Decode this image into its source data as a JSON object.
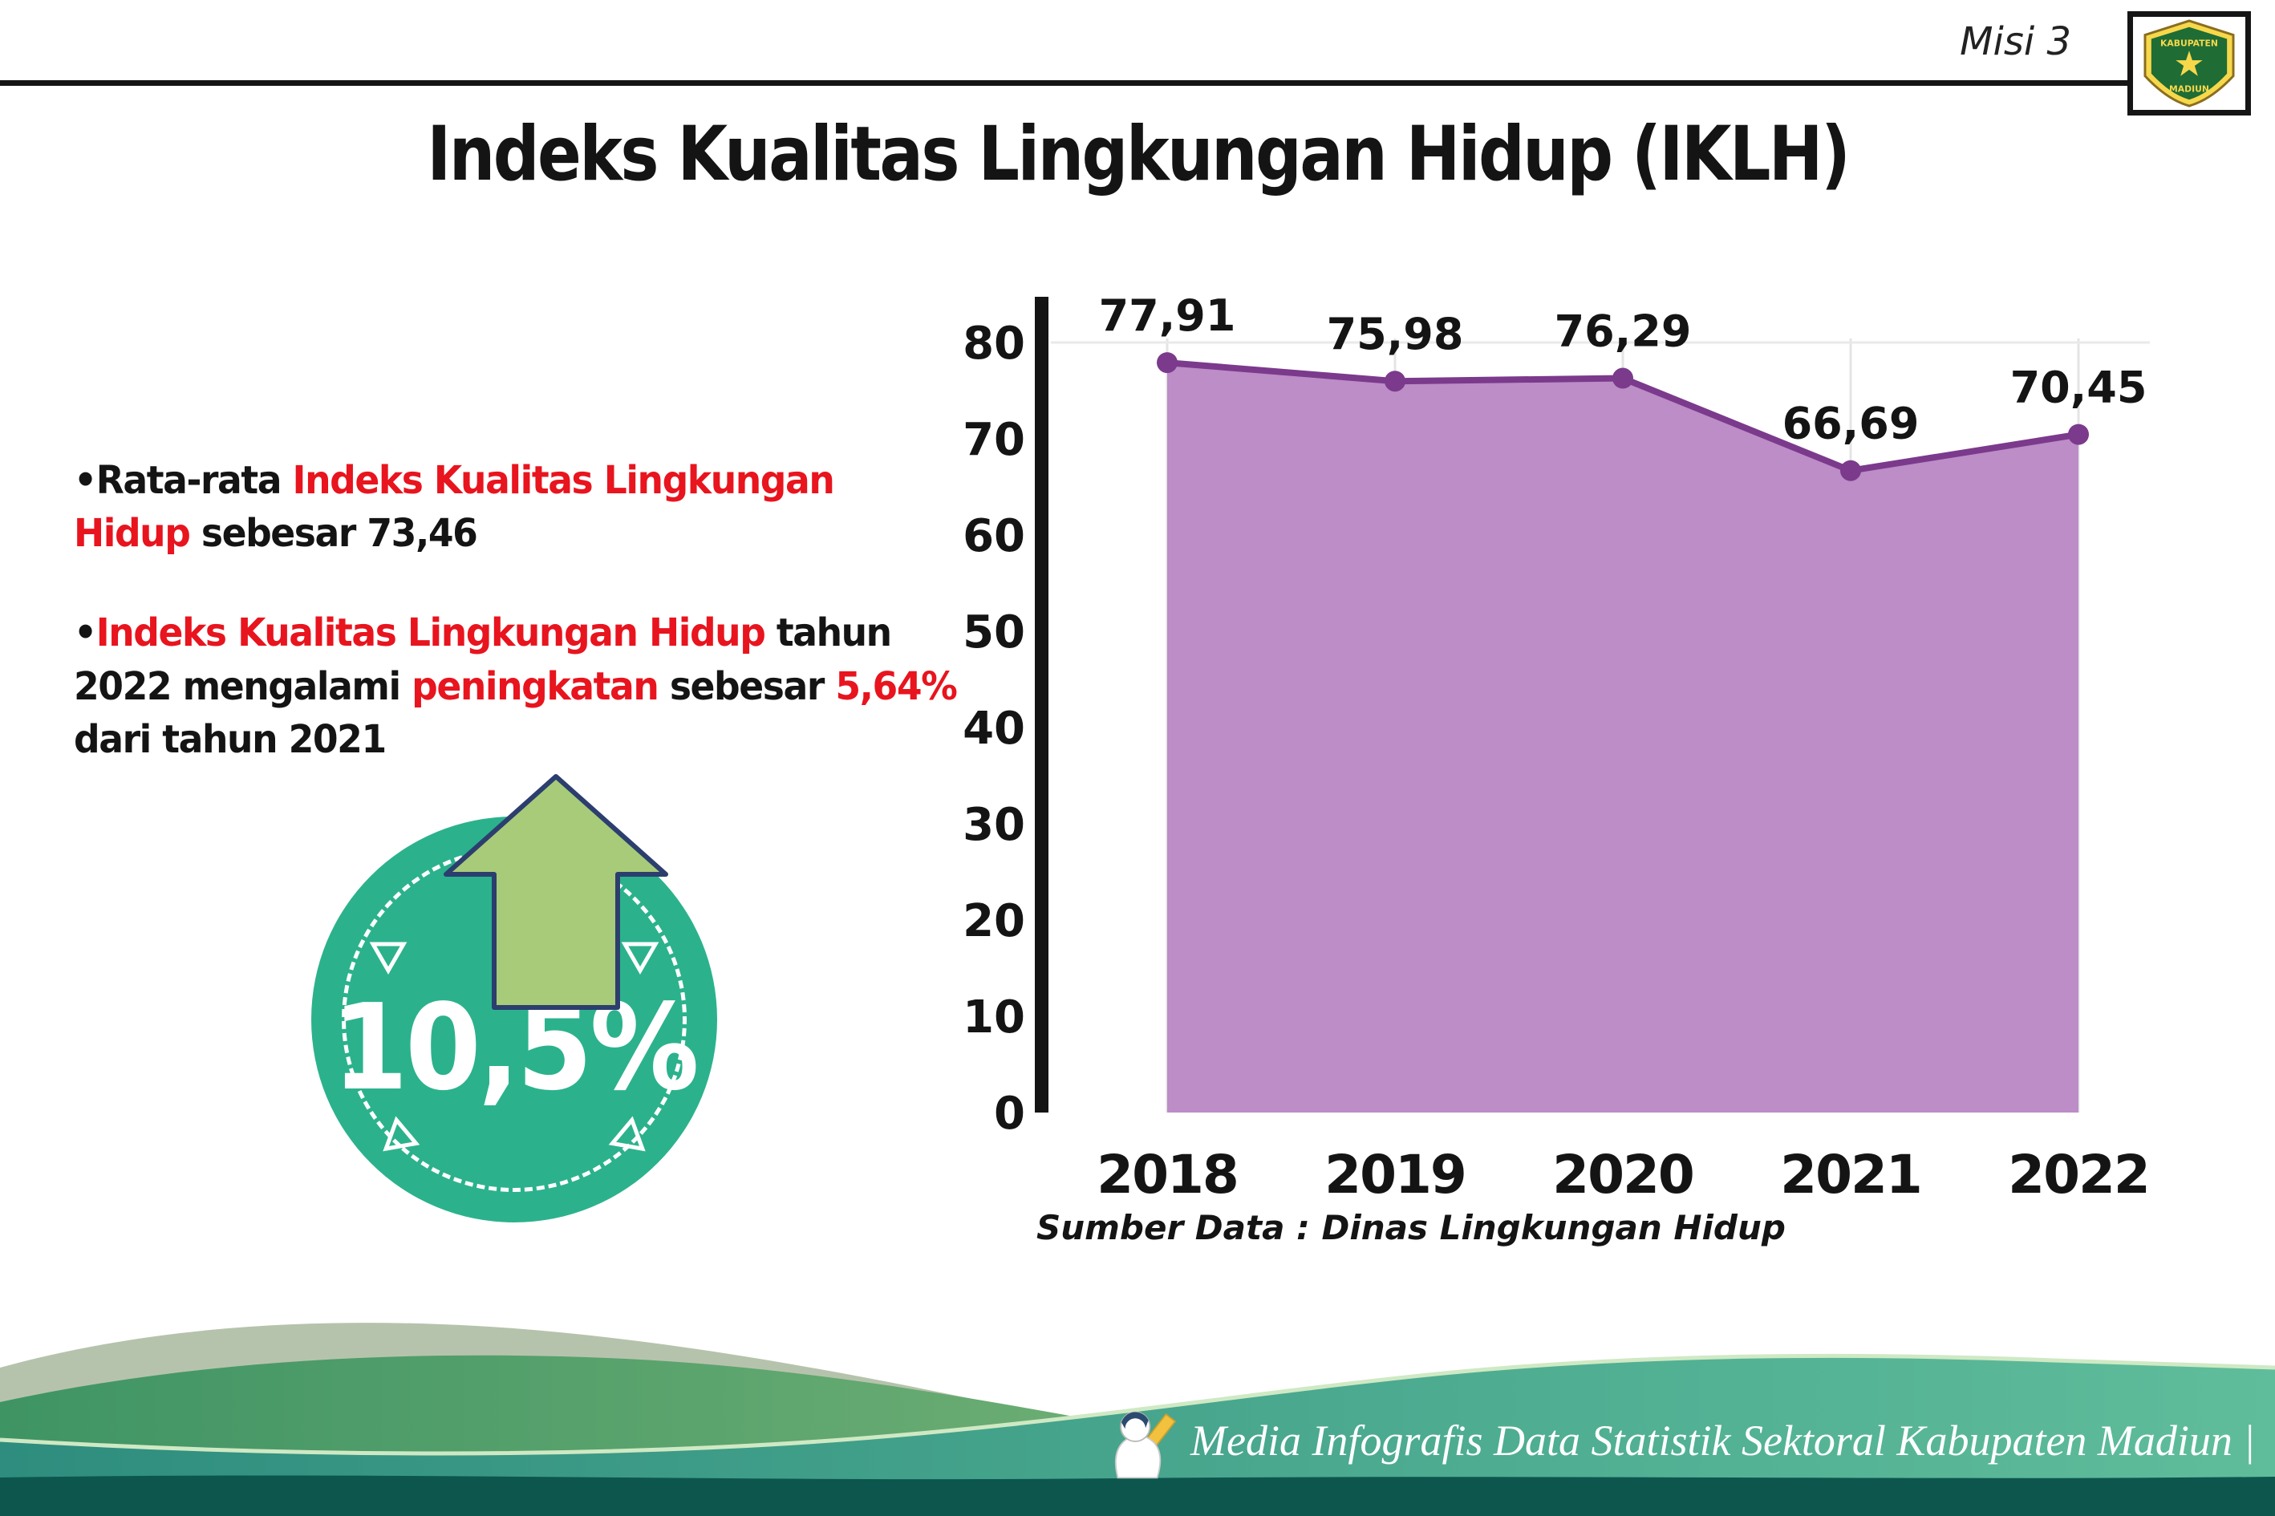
{
  "header": {
    "misi_label": "Misi 3",
    "title": "Indeks Kualitas Lingkungan Hidup (IKLH)",
    "logo_top": "KABUPATEN",
    "logo_bottom": "MADIUN"
  },
  "bullets": [
    {
      "segments": [
        {
          "text": "•Rata-rata ",
          "color": "black"
        },
        {
          "text": "Indeks Kualitas Lingkungan Hidup",
          "color": "red"
        },
        {
          "text": " sebesar 73,46",
          "color": "black"
        }
      ]
    },
    {
      "segments": [
        {
          "text": "•",
          "color": "black"
        },
        {
          "text": "Indeks Kualitas Lingkungan Hidup",
          "color": "red"
        },
        {
          "text": " tahun 2022 mengalami ",
          "color": "black"
        },
        {
          "text": "peningkatan",
          "color": "red"
        },
        {
          "text": " sebesar ",
          "color": "black"
        },
        {
          "text": "5,64%",
          "color": "red"
        },
        {
          "text": " dari tahun 2021",
          "color": "black"
        }
      ]
    }
  ],
  "badge": {
    "value": "10,5%"
  },
  "chart_data": {
    "type": "area",
    "title": "Indeks Kualitas Lingkungan Hidup (IKLH)",
    "categories": [
      "2018",
      "2019",
      "2020",
      "2021",
      "2022"
    ],
    "values": [
      77.91,
      75.98,
      76.29,
      66.69,
      70.45
    ],
    "point_labels": [
      "77,91",
      "75,98",
      "76,29",
      "66,69",
      "70,45"
    ],
    "ylim": [
      0,
      80
    ],
    "ytick_step": 10,
    "grid": "faint vertical per year",
    "legend": "none",
    "fill_color": "#bc8dc6",
    "line_color": "#7b3a8c",
    "source": "Sumber Data : Dinas Lingkungan Hidup"
  },
  "footer": {
    "caption": "Media Infografis Data Statistik Sektoral Kabupaten Madiun |"
  }
}
